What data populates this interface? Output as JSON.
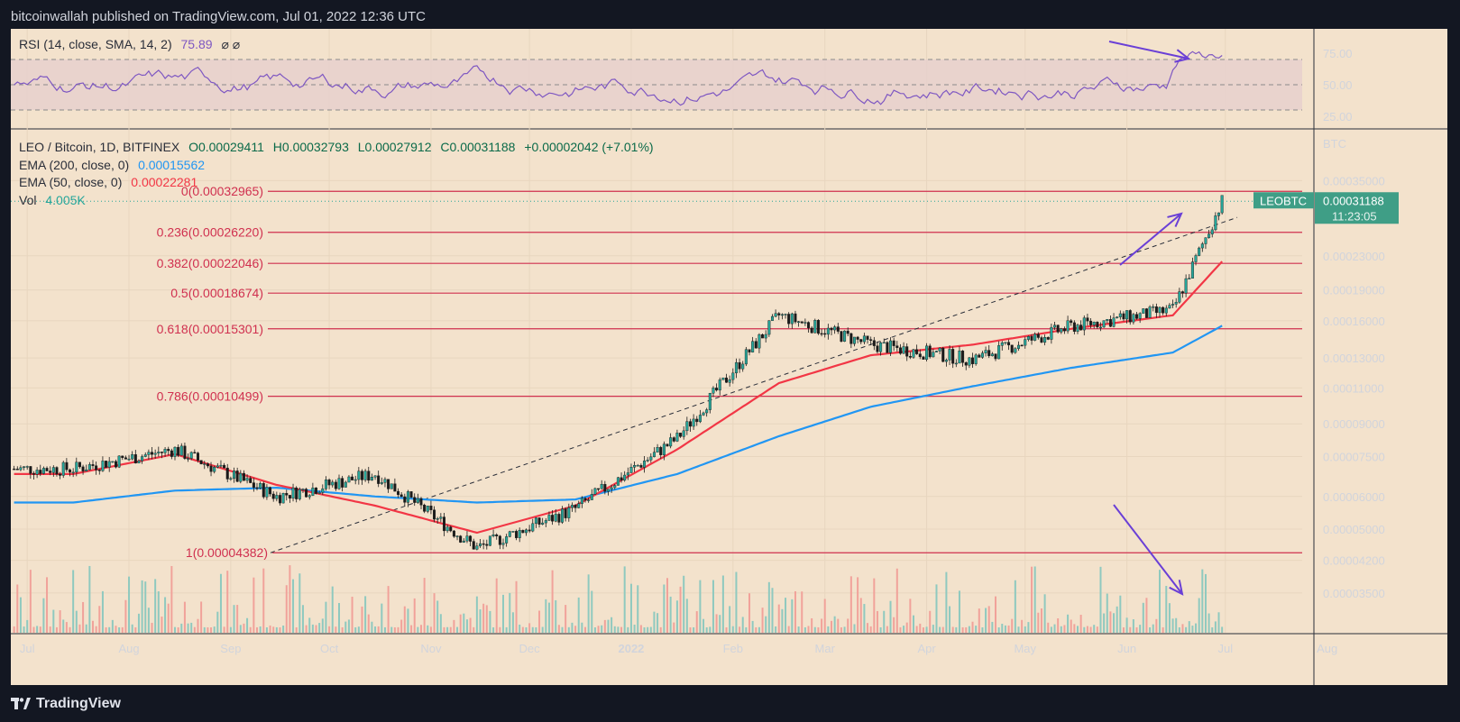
{
  "header": {
    "publisher": "bitcoinwallah published on TradingView.com, Jul 01, 2022 12:36 UTC"
  },
  "footer": {
    "brand": "TradingView",
    "logo_icon": "tradingview-logo-icon"
  },
  "rsi_panel": {
    "label": "RSI (14, close, SMA, 14, 2)",
    "value": "75.89",
    "ticks": [
      "75.00",
      "50.00",
      "25.00"
    ]
  },
  "main_legend": {
    "symbol": "LEO / Bitcoin, 1D, BITFINEX",
    "open": "O0.00029411",
    "high": "H0.00032793",
    "low": "L0.00027912",
    "close": "C0.00031188",
    "change": "+0.00002042 (+7.01%)",
    "ema200_label": "EMA (200, close, 0)",
    "ema200_value": "0.00015562",
    "ema50_label": "EMA (50, close, 0)",
    "ema50_value": "0.00022281",
    "vol_label": "Vol",
    "vol_value": "4.005K"
  },
  "price_axis": {
    "unit": "BTC",
    "ticks": [
      "0.00035000",
      "0.00023000",
      "0.00019000",
      "0.00016000",
      "0.00013000",
      "0.00011000",
      "0.00009000",
      "0.00007500",
      "0.00006000",
      "0.00005000",
      "0.00004200",
      "0.00003500"
    ],
    "badge_symbol": "LEOBTC",
    "badge_price": "0.00031188",
    "badge_timer": "11:23:05"
  },
  "time_axis": {
    "ticks": [
      "Jul",
      "Aug",
      "Sep",
      "Oct",
      "Nov",
      "Dec",
      "2022",
      "Feb",
      "Mar",
      "Apr",
      "May",
      "Jun",
      "Jul",
      "Aug"
    ]
  },
  "fib_levels": [
    {
      "label": "0(0.00032965)",
      "price": 0.00032965
    },
    {
      "label": "0.236(0.00026220)",
      "price": 0.0002622
    },
    {
      "label": "0.382(0.00022046)",
      "price": 0.00022046
    },
    {
      "label": "0.5(0.00018674)",
      "price": 0.00018674
    },
    {
      "label": "0.618(0.00015301)",
      "price": 0.00015301
    },
    {
      "label": "0.786(0.00010499)",
      "price": 0.00010499
    },
    {
      "label": "1(0.00004382)",
      "price": 4.382e-05
    }
  ],
  "chart_data": {
    "type": "line",
    "title": "LEO / Bitcoin, 1D, BITFINEX",
    "ylabel": "BTC",
    "y_scale": "log",
    "ylim": [
      3.1e-05,
      0.00038
    ],
    "grid": true,
    "x": [
      "2021-07",
      "2021-08",
      "2021-09",
      "2021-10",
      "2021-11",
      "2021-12",
      "2022-01",
      "2022-02",
      "2022-03",
      "2022-04",
      "2022-05",
      "2022-06",
      "2022-07"
    ],
    "series": [
      {
        "name": "LEO / Bitcoin",
        "color": "#26a69a",
        "values": [
          7e-05,
          7.8e-05,
          6e-05,
          6.8e-05,
          4.5e-05,
          5.6e-05,
          8.3e-05,
          0.000165,
          0.00014,
          0.000129,
          0.000155,
          0.00017,
          0.0003119
        ]
      },
      {
        "name": "EMA (200, close, 0)",
        "color": "#2196f3",
        "values": [
          5.8e-05,
          6.2e-05,
          6.3e-05,
          6e-05,
          5.8e-05,
          5.9e-05,
          6.8e-05,
          8.4e-05,
          9.9e-05,
          0.000111,
          0.000123,
          0.000134,
          0.0001556
        ]
      },
      {
        "name": "EMA (50, close, 0)",
        "color": "#f23645",
        "values": [
          6.8e-05,
          7.6e-05,
          6.4e-05,
          5.7e-05,
          4.9e-05,
          5.7e-05,
          7.8e-05,
          0.000113,
          0.000132,
          0.00014,
          0.000153,
          0.000165,
          0.0002228
        ]
      }
    ],
    "rsi": {
      "value": 75.89,
      "levels": [
        70,
        50,
        30
      ],
      "ylim": [
        20,
        90
      ]
    }
  },
  "colors": {
    "background": "#131722",
    "chart_bg": "#f3e2cc",
    "up": "#26a69a",
    "down": "#ef5350",
    "fib": "#d0304f",
    "annotation": "#6a3fd6"
  }
}
